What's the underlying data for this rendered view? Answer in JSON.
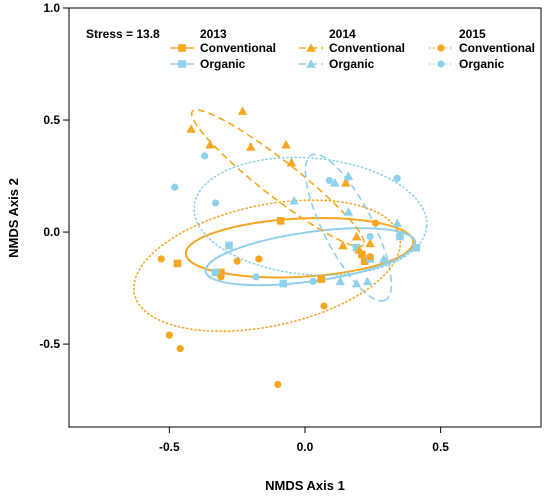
{
  "chart_data": {
    "type": "scatter",
    "title": "",
    "xlabel": "NMDS Axis 1",
    "ylabel": "NMDS Axis 2",
    "xlim": [
      -0.87,
      0.87
    ],
    "ylim": [
      -0.87,
      1.0
    ],
    "xticks": [
      -0.5,
      0.0,
      0.5
    ],
    "xtick_labels": [
      "-0.5",
      "0.0",
      "0.5"
    ],
    "yticks": [
      -0.5,
      0.0,
      0.5,
      1.0
    ],
    "ytick_labels": [
      "-0.5",
      "0.0",
      "0.5",
      "1.0"
    ],
    "grid": false,
    "stress_label": "Stress = 13.8",
    "legend_position": "top",
    "legend_groups": [
      {
        "year": "2013",
        "marker": "square",
        "line": "solid",
        "entries": [
          "Conventional",
          "Organic"
        ]
      },
      {
        "year": "2014",
        "marker": "triangle",
        "line": "dashed",
        "entries": [
          "Conventional",
          "Organic"
        ]
      },
      {
        "year": "2015",
        "marker": "circle",
        "line": "dotted",
        "entries": [
          "Conventional",
          "Organic"
        ]
      }
    ],
    "colors": {
      "Conventional": "#f5a623",
      "Organic": "#8fd0ea"
    },
    "series": [
      {
        "year": "2013",
        "treatment": "Conventional",
        "marker": "square",
        "line": "solid",
        "x": [
          -0.47,
          -0.31,
          -0.09,
          0.06,
          0.21,
          0.22
        ],
        "y": [
          -0.14,
          -0.18,
          0.05,
          -0.21,
          -0.1,
          -0.13
        ],
        "ellipse": {
          "cx": -0.02,
          "cy": -0.07,
          "rx": 0.42,
          "ry": 0.13,
          "angle": 3
        }
      },
      {
        "year": "2013",
        "treatment": "Organic",
        "marker": "square",
        "line": "solid",
        "x": [
          -0.33,
          -0.28,
          -0.08,
          0.19,
          0.24,
          0.35,
          0.41
        ],
        "y": [
          -0.18,
          -0.06,
          -0.23,
          -0.07,
          -0.12,
          -0.02,
          -0.07
        ],
        "ellipse": {
          "cx": 0.02,
          "cy": -0.11,
          "rx": 0.39,
          "ry": 0.11,
          "angle": 8
        }
      },
      {
        "year": "2014",
        "treatment": "Conventional",
        "marker": "triangle",
        "line": "dashed",
        "x": [
          -0.42,
          -0.35,
          -0.23,
          -0.2,
          -0.07,
          -0.05,
          0.14,
          0.15,
          0.19,
          0.2,
          0.24
        ],
        "y": [
          0.46,
          0.39,
          0.54,
          0.38,
          0.39,
          0.31,
          -0.06,
          0.22,
          -0.02,
          -0.08,
          -0.05
        ],
        "ellipse": {
          "cx": -0.1,
          "cy": 0.24,
          "rx": 0.4,
          "ry": 0.08,
          "angle": -38
        }
      },
      {
        "year": "2014",
        "treatment": "Organic",
        "marker": "triangle",
        "line": "dashed",
        "x": [
          -0.04,
          0.11,
          0.13,
          0.16,
          0.16,
          0.19,
          0.23,
          0.29,
          0.34
        ],
        "y": [
          0.14,
          0.22,
          -0.22,
          0.25,
          0.09,
          -0.23,
          -0.22,
          -0.12,
          0.04
        ],
        "ellipse": {
          "cx": 0.16,
          "cy": 0.02,
          "rx": 0.3,
          "ry": 0.11,
          "angle": -63
        }
      },
      {
        "year": "2015",
        "treatment": "Conventional",
        "marker": "circle",
        "line": "dotted",
        "x": [
          -0.53,
          -0.5,
          -0.46,
          -0.31,
          -0.25,
          -0.17,
          -0.1,
          0.07,
          0.24,
          0.26
        ],
        "y": [
          -0.12,
          -0.46,
          -0.52,
          -0.2,
          -0.13,
          -0.12,
          -0.68,
          -0.33,
          -0.11,
          0.04
        ],
        "ellipse": {
          "cx": -0.14,
          "cy": -0.15,
          "rx": 0.5,
          "ry": 0.27,
          "angle": 12
        }
      },
      {
        "year": "2015",
        "treatment": "Organic",
        "marker": "circle",
        "line": "dotted",
        "x": [
          -0.48,
          -0.37,
          -0.33,
          -0.18,
          0.03,
          0.09,
          0.24,
          0.34
        ],
        "y": [
          0.2,
          0.34,
          0.13,
          -0.2,
          -0.22,
          0.23,
          -0.02,
          0.24
        ],
        "ellipse": {
          "cx": 0.02,
          "cy": 0.07,
          "rx": 0.43,
          "ry": 0.26,
          "angle": -5
        }
      }
    ]
  }
}
